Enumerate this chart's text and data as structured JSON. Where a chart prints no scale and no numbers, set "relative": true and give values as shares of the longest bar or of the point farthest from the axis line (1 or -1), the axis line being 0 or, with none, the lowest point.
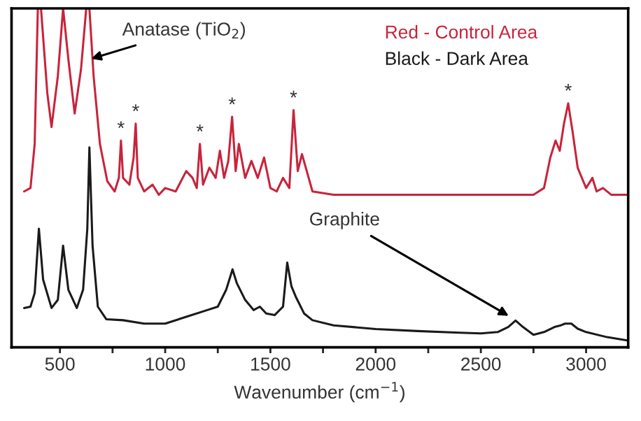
{
  "chart_data": {
    "type": "line",
    "relative": true,
    "xlabel": "Wavenumber (cm$^{−1}$)",
    "xlim": [
      270,
      3200
    ],
    "xticks": [
      500,
      {
        "value": 750,
        "label": null
      },
      1000,
      {
        "value": 1250,
        "label": null
      },
      1500,
      {
        "value": 1750,
        "label": null
      },
      2000,
      {
        "value": 2250,
        "label": null
      },
      2500,
      {
        "value": 2750,
        "label": null
      },
      3000
    ],
    "tick_labels": "x",
    "legend": "top right",
    "grid": false,
    "marker": "none",
    "line_style": "solid",
    "series": [
      {
        "name": "Red - Control Area",
        "color": "#c8243c",
        "x": [
          330,
          360,
          380,
          395,
          410,
          440,
          460,
          490,
          515,
          540,
          570,
          600,
          625,
          640,
          660,
          690,
          725,
          760,
          780,
          790,
          800,
          830,
          850,
          860,
          870,
          900,
          940,
          970,
          1000,
          1050,
          1100,
          1130,
          1150,
          1165,
          1180,
          1210,
          1240,
          1260,
          1280,
          1300,
          1318,
          1335,
          1350,
          1380,
          1410,
          1440,
          1470,
          1500,
          1530,
          1560,
          1590,
          1610,
          1630,
          1650,
          1700,
          1800,
          2000,
          2200,
          2400,
          2600,
          2750,
          2800,
          2830,
          2855,
          2875,
          2895,
          2915,
          2935,
          2960,
          3000,
          3030,
          3050,
          3080,
          3120,
          3200
        ],
        "values": [
          0.46,
          0.47,
          0.6,
          1.0,
          1.0,
          0.75,
          0.65,
          0.8,
          1.0,
          0.85,
          0.69,
          0.82,
          1.0,
          1.0,
          0.8,
          0.6,
          0.49,
          0.46,
          0.5,
          0.61,
          0.5,
          0.48,
          0.56,
          0.66,
          0.5,
          0.46,
          0.48,
          0.45,
          0.47,
          0.46,
          0.52,
          0.5,
          0.47,
          0.6,
          0.48,
          0.53,
          0.5,
          0.58,
          0.5,
          0.55,
          0.68,
          0.52,
          0.6,
          0.5,
          0.55,
          0.5,
          0.56,
          0.47,
          0.46,
          0.5,
          0.47,
          0.7,
          0.52,
          0.57,
          0.46,
          0.45,
          0.45,
          0.45,
          0.45,
          0.45,
          0.45,
          0.47,
          0.56,
          0.61,
          0.58,
          0.66,
          0.72,
          0.64,
          0.53,
          0.47,
          0.5,
          0.46,
          0.47,
          0.45,
          0.45
        ]
      },
      {
        "name": "Black - Dark Area",
        "color": "#1a1a1a",
        "x": [
          330,
          360,
          380,
          400,
          420,
          460,
          490,
          515,
          540,
          580,
          610,
          630,
          640,
          655,
          680,
          720,
          800,
          900,
          1000,
          1100,
          1200,
          1250,
          1290,
          1320,
          1340,
          1380,
          1420,
          1450,
          1480,
          1520,
          1560,
          1580,
          1600,
          1620,
          1660,
          1700,
          1800,
          2000,
          2200,
          2400,
          2500,
          2580,
          2630,
          2665,
          2700,
          2750,
          2800,
          2850,
          2880,
          2900,
          2930,
          2960,
          3000,
          3100,
          3200
        ],
        "values": [
          0.116,
          0.12,
          0.16,
          0.35,
          0.2,
          0.116,
          0.14,
          0.3,
          0.17,
          0.116,
          0.17,
          0.35,
          0.59,
          0.3,
          0.12,
          0.083,
          0.08,
          0.07,
          0.07,
          0.09,
          0.11,
          0.12,
          0.17,
          0.23,
          0.19,
          0.14,
          0.11,
          0.12,
          0.1,
          0.095,
          0.12,
          0.25,
          0.18,
          0.15,
          0.1,
          0.08,
          0.065,
          0.054,
          0.048,
          0.043,
          0.041,
          0.045,
          0.06,
          0.079,
          0.06,
          0.037,
          0.045,
          0.06,
          0.065,
          0.07,
          0.07,
          0.055,
          0.045,
          0.03,
          0.02
        ]
      }
    ],
    "annotations": [
      {
        "text": "Anatase (TiO$_{2}$)",
        "x": 640,
        "y": 0.85
      },
      {
        "text": "Graphite",
        "x": 2640,
        "y": 0.09
      },
      {
        "text": "*",
        "x": 790,
        "y": 0.61
      },
      {
        "text": "*",
        "x": 860,
        "y": 0.66
      },
      {
        "text": "*",
        "x": 1165,
        "y": 0.6
      },
      {
        "text": "*",
        "x": 1318,
        "y": 0.68
      },
      {
        "text": "*",
        "x": 1610,
        "y": 0.7
      },
      {
        "text": "*",
        "x": 2915,
        "y": 0.72
      }
    ]
  }
}
